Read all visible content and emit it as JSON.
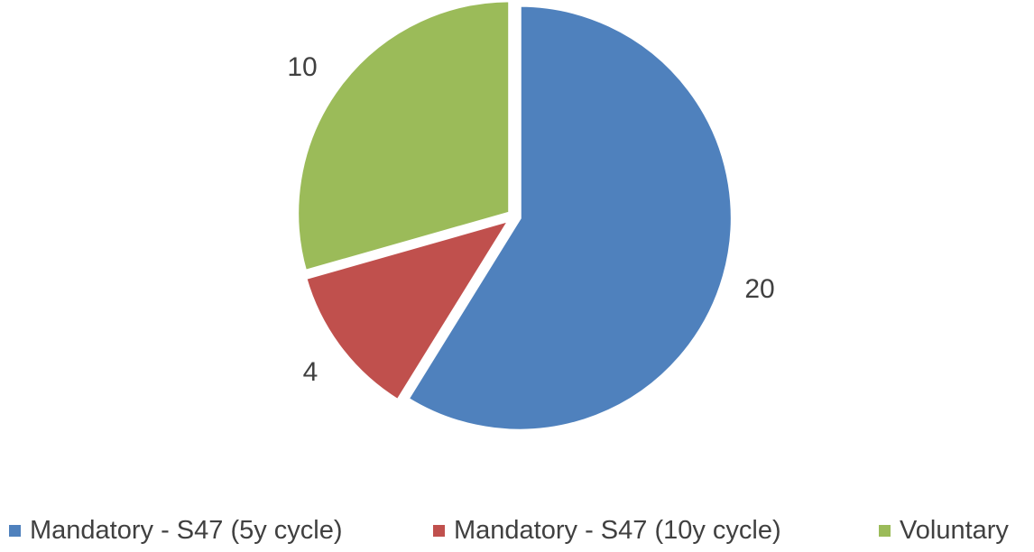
{
  "chart_data": {
    "type": "pie",
    "categories": [
      "Mandatory - S47 (5y cycle)",
      "Mandatory - S47 (10y cycle)",
      "Voluntary"
    ],
    "values": [
      20,
      4,
      10
    ],
    "data_labels": [
      "20",
      "4",
      "10"
    ],
    "colors": [
      "#4F81BD",
      "#C0504D",
      "#9BBB59"
    ],
    "exploded": true,
    "start_angle": "12 o'clock, clockwise",
    "legend": "bottom",
    "title": ""
  }
}
